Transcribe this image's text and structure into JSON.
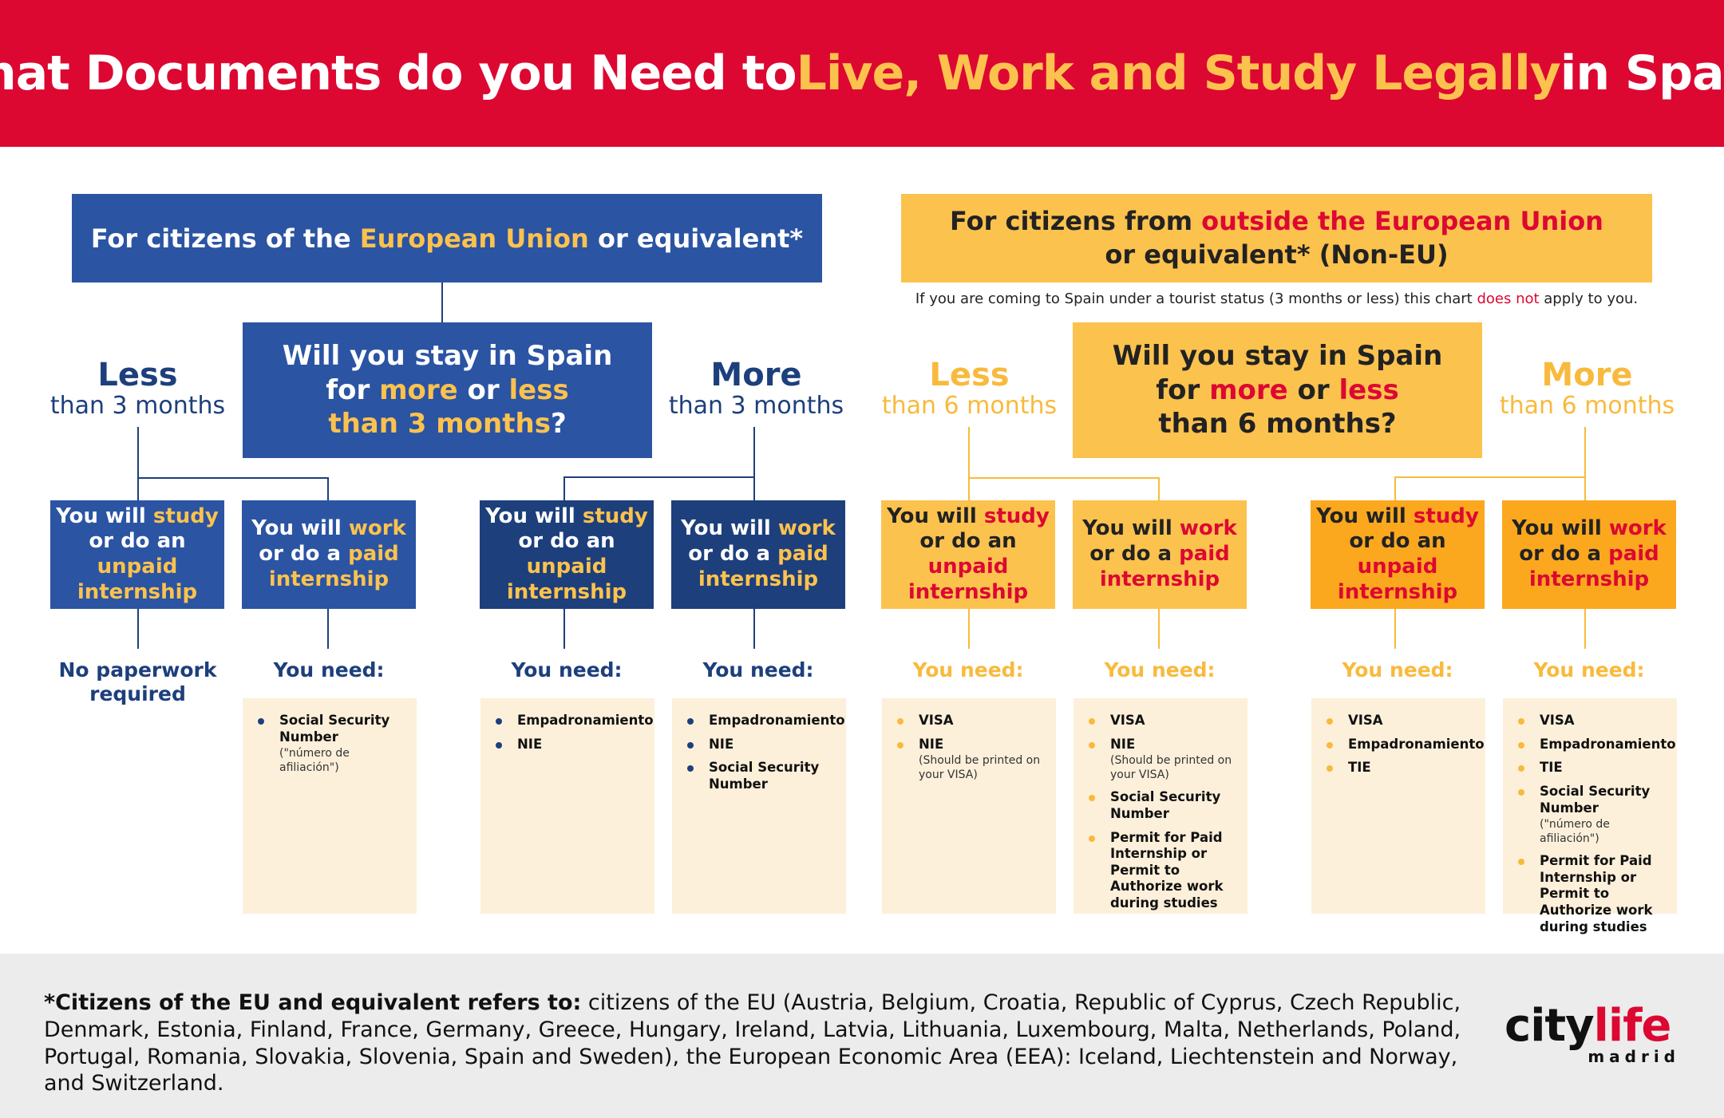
{
  "header": {
    "title_part1": "What Documents do you Need to ",
    "title_highlight": "Live, Work and Study Legally",
    "title_part2": " in Spain!"
  },
  "eu": {
    "heading_a": "For citizens of the ",
    "heading_b": "European Union",
    "heading_c": " or equivalent*",
    "question_l1": "Will you stay in Spain",
    "question_l2a": "for ",
    "question_l2b": "more",
    "question_l2c": " or ",
    "question_l2d": "less",
    "question_l3a": "than 3 months",
    "question_l3b": "?",
    "less_big": "Less",
    "less_small": "than 3 months",
    "more_big": "More",
    "more_small": "than 3 months"
  },
  "noneu": {
    "heading_a": "For citizens from ",
    "heading_b": "outside the European Union",
    "heading_c": "or equivalent* (Non-EU)",
    "disclaimer_a": "If you are coming to Spain under a tourist status (3 months or less) this chart ",
    "disclaimer_b": "does not",
    "disclaimer_c": " apply to you.",
    "question_l1": "Will you stay in Spain",
    "question_l2a": "for ",
    "question_l2b": "more",
    "question_l2c": " or ",
    "question_l2d": "less",
    "question_l3": "than 6 months?",
    "less_big": "Less",
    "less_small": "than 6 months",
    "more_big": "More",
    "more_small": "than 6 months"
  },
  "options": {
    "study_a": "You will ",
    "study_b": "study",
    "study_c": "or do an ",
    "study_d": "unpaid",
    "study_e": "internship",
    "work_a": "You will ",
    "work_b": "work",
    "work_c": "or do a ",
    "work_d": "paid",
    "work_e": "internship"
  },
  "outcomes": {
    "no_paperwork": "No paperwork required",
    "you_need": "You need:"
  },
  "lists": {
    "eu_less_work": [
      {
        "text": "Social Security Number",
        "note": "(\"número de afiliación\")"
      }
    ],
    "eu_more_study": [
      {
        "text": "Empadronamiento"
      },
      {
        "text": "NIE"
      }
    ],
    "eu_more_work": [
      {
        "text": "Empadronamiento"
      },
      {
        "text": "NIE"
      },
      {
        "text": "Social Security Number"
      }
    ],
    "noneu_less_study": [
      {
        "text": "VISA"
      },
      {
        "text": "NIE",
        "note": "(Should be printed on your VISA)"
      }
    ],
    "noneu_less_work": [
      {
        "text": "VISA"
      },
      {
        "text": "NIE",
        "note": "(Should be printed on your VISA)"
      },
      {
        "text": "Social Security Number"
      },
      {
        "text": "Permit for Paid Internship or Permit to Authorize work during studies"
      }
    ],
    "noneu_more_study": [
      {
        "text": "VISA"
      },
      {
        "text": "Empadronamiento"
      },
      {
        "text": "TIE"
      }
    ],
    "noneu_more_work": [
      {
        "text": "VISA"
      },
      {
        "text": "Empadronamiento"
      },
      {
        "text": "TIE"
      },
      {
        "text": "Social Security Number",
        "note": "(\"número de afiliación\")"
      },
      {
        "text": "Permit for Paid Internship or Permit to Authorize work during studies"
      }
    ]
  },
  "footer": {
    "bold": "*Citizens of the EU and equivalent refers to:",
    "text": " citizens of the EU (Austria, Belgium, Croatia, Republic of Cyprus, Czech Republic, Denmark, Estonia, Finland, France, Germany, Greece, Hungary, Ireland, Latvia, Lithuania, Luxembourg, Malta, Netherlands, Poland, Portugal, Romania, Slovakia, Slovenia, Spain and Sweden), the European Economic Area (EEA): Iceland, Liechtenstein and Norway, and Switzerland."
  },
  "logo": {
    "city": "city",
    "life": "life",
    "sub": "madrid"
  },
  "colors": {
    "red": "#dc0832",
    "yellow": "#fcc24e",
    "blue": "#2b54a3",
    "navy": "#1d3f7c",
    "orange": "#fba81f",
    "cream": "#fdf0da"
  }
}
